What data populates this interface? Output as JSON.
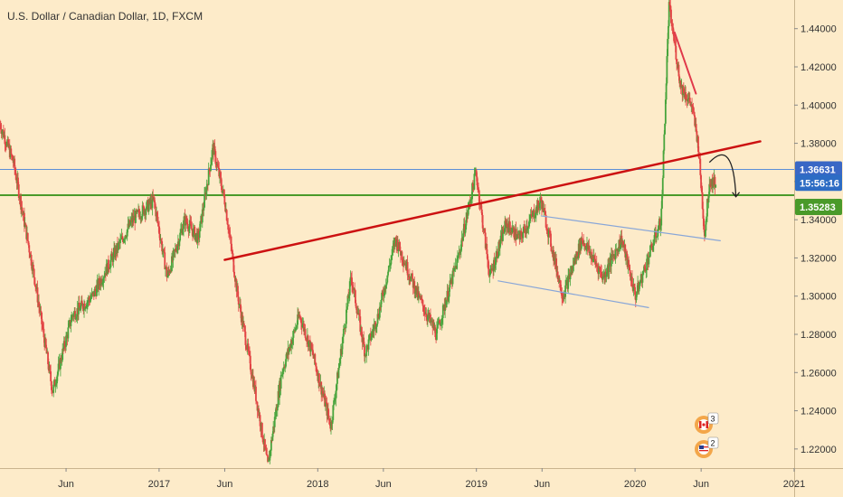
{
  "header": {
    "title": "U.S. Dollar / Canadian Dollar, 1D, FXCM"
  },
  "chart_data": {
    "type": "candlestick",
    "title": "U.S. Dollar / Canadian Dollar, 1D, FXCM",
    "x_range": [
      "2016-01-01",
      "2021-01-01"
    ],
    "ylim": [
      1.21,
      1.455
    ],
    "y_ticks": [
      "1.44000",
      "1.42000",
      "1.40000",
      "1.38000",
      "1.36000",
      "1.34000",
      "1.32000",
      "1.30000",
      "1.28000",
      "1.26000",
      "1.24000",
      "1.22000"
    ],
    "x_ticks": [
      {
        "label": "Jun",
        "date": "2016-06-01"
      },
      {
        "label": "2017",
        "date": "2017-01-01"
      },
      {
        "label": "Jun",
        "date": "2017-06-01"
      },
      {
        "label": "2018",
        "date": "2018-01-01"
      },
      {
        "label": "Jun",
        "date": "2018-06-01"
      },
      {
        "label": "2019",
        "date": "2019-01-01"
      },
      {
        "label": "Jun",
        "date": "2019-06-01"
      },
      {
        "label": "2020",
        "date": "2020-01-01"
      },
      {
        "label": "Jun",
        "date": "2020-06-01"
      },
      {
        "label": "2021",
        "date": "2021-01-01"
      }
    ],
    "price_path": [
      [
        "2016-01-01",
        1.39
      ],
      [
        "2016-02-01",
        1.37
      ],
      [
        "2016-03-20",
        1.31
      ],
      [
        "2016-05-01",
        1.25
      ],
      [
        "2016-06-15",
        1.29
      ],
      [
        "2016-08-01",
        1.3
      ],
      [
        "2016-09-15",
        1.32
      ],
      [
        "2016-11-01",
        1.34
      ],
      [
        "2016-12-20",
        1.35
      ],
      [
        "2017-01-20",
        1.31
      ],
      [
        "2017-03-01",
        1.34
      ],
      [
        "2017-04-01",
        1.33
      ],
      [
        "2017-05-05",
        1.378
      ],
      [
        "2017-06-01",
        1.35
      ],
      [
        "2017-07-01",
        1.3
      ],
      [
        "2017-08-10",
        1.25
      ],
      [
        "2017-09-08",
        1.211
      ],
      [
        "2017-10-10",
        1.26
      ],
      [
        "2017-11-20",
        1.29
      ],
      [
        "2017-12-20",
        1.27
      ],
      [
        "2018-01-31",
        1.232
      ],
      [
        "2018-03-19",
        1.31
      ],
      [
        "2018-04-20",
        1.27
      ],
      [
        "2018-05-20",
        1.29
      ],
      [
        "2018-06-29",
        1.33
      ],
      [
        "2018-08-20",
        1.3
      ],
      [
        "2018-10-01",
        1.28
      ],
      [
        "2018-11-20",
        1.32
      ],
      [
        "2018-12-31",
        1.365
      ],
      [
        "2019-02-01",
        1.31
      ],
      [
        "2019-03-10",
        1.338
      ],
      [
        "2019-04-10",
        1.33
      ],
      [
        "2019-05-30",
        1.35
      ],
      [
        "2019-07-19",
        1.3
      ],
      [
        "2019-09-01",
        1.33
      ],
      [
        "2019-10-20",
        1.31
      ],
      [
        "2019-12-01",
        1.33
      ],
      [
        "2020-01-02",
        1.3
      ],
      [
        "2020-02-15",
        1.33
      ],
      [
        "2020-03-01",
        1.34
      ],
      [
        "2020-03-19",
        1.452
      ],
      [
        "2020-04-15",
        1.41
      ],
      [
        "2020-05-10",
        1.4
      ],
      [
        "2020-05-25",
        1.38
      ],
      [
        "2020-06-09",
        1.332
      ],
      [
        "2020-06-20",
        1.36
      ],
      [
        "2020-07-05",
        1.36
      ]
    ],
    "horizontal_levels": [
      {
        "value": 1.36631,
        "color": "#5b8fd6",
        "label": "1.36631"
      },
      {
        "value": 1.35283,
        "color": "#4a9a2a",
        "label": "1.35283"
      }
    ],
    "countdown": {
      "label": "15:56:16",
      "color": "#2d6cc4"
    },
    "trendlines": [
      {
        "name": "major-rising-trendline",
        "color": "#cc1111",
        "from": [
          "2017-06-01",
          1.319
        ],
        "to": [
          "2020-10-15",
          1.381
        ]
      },
      {
        "name": "upper-channel-line",
        "color": "#88a6d8",
        "from": [
          "2019-05-30",
          1.342
        ],
        "to": [
          "2020-07-15",
          1.329
        ]
      },
      {
        "name": "lower-channel-line",
        "color": "#88a6d8",
        "from": [
          "2019-02-20",
          1.308
        ],
        "to": [
          "2020-02-01",
          1.294
        ]
      },
      {
        "name": "post-peak-trendline",
        "color": "#e0394a",
        "from": [
          "2020-04-01",
          1.438
        ],
        "to": [
          "2020-05-20",
          1.406
        ]
      }
    ],
    "projection_arrow": {
      "from": [
        "2020-06-20",
        1.37
      ],
      "to": [
        "2020-08-20",
        1.352
      ],
      "color": "#222222"
    },
    "event_badges": [
      {
        "flag": "CA",
        "count": "3"
      },
      {
        "flag": "US",
        "count": "2"
      }
    ],
    "colors": {
      "background": "#fdebc9",
      "up": "#48a43c",
      "down": "#e24444",
      "axis_text": "#333333"
    }
  }
}
